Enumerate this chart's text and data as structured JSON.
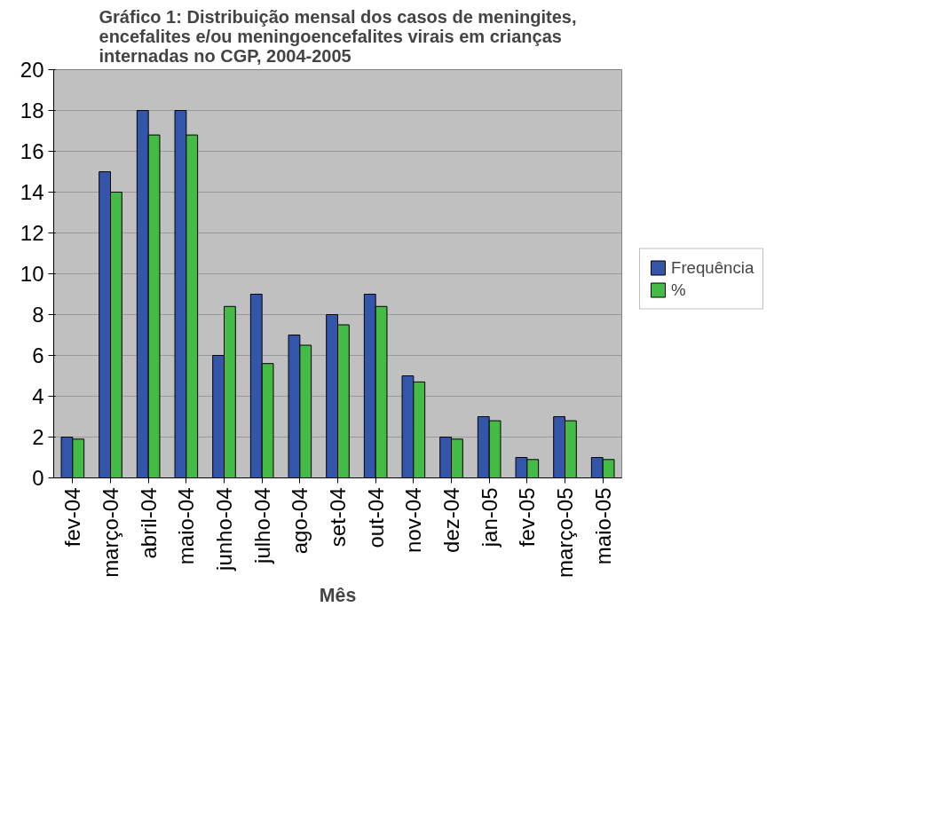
{
  "chart_data": {
    "type": "bar",
    "title": "Gráfico 1: Distribuição mensal dos casos de meningites, encefalites e/ou meningoencefalites virais em crianças internadas no CGP, 2004-2005",
    "xlabel": "Mês",
    "categories": [
      "fev-04",
      "março-04",
      "abril-04",
      "maio-04",
      "junho-04",
      "julho-04",
      "ago-04",
      "set-04",
      "out-04",
      "nov-04",
      "dez-04",
      "jan-05",
      "fev-05",
      "março-05",
      "maio-05"
    ],
    "series": [
      {
        "name": "Frequência",
        "color": "#3355aa",
        "values": [
          2,
          15,
          18,
          18,
          6,
          9,
          7,
          8,
          9,
          5,
          2,
          3,
          1,
          3,
          1
        ]
      },
      {
        "name": "%",
        "color": "#44bb44",
        "values": [
          1.9,
          14.0,
          16.8,
          16.8,
          8.4,
          5.6,
          6.5,
          7.5,
          8.4,
          4.7,
          1.9,
          2.8,
          0.9,
          2.8,
          0.9
        ]
      }
    ],
    "ylim": [
      0,
      20
    ],
    "yticks": [
      0,
      2,
      4,
      6,
      8,
      10,
      12,
      14,
      16,
      18,
      20
    ],
    "grid": "y",
    "legend": "right"
  }
}
